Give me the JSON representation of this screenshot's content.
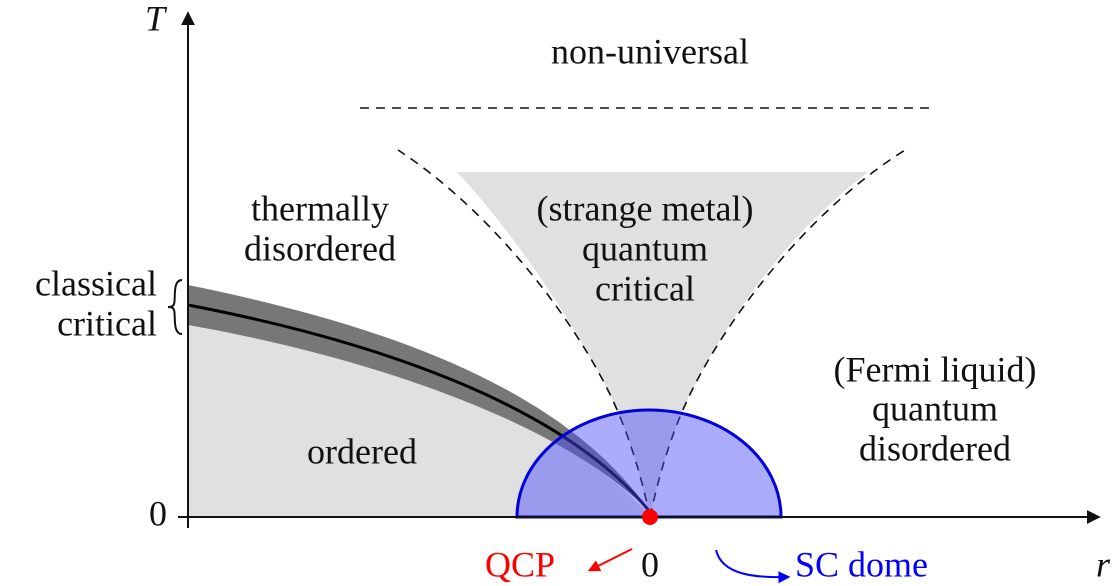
{
  "axes": {
    "y_label": "T",
    "x_label": "r",
    "y_origin": "0",
    "x_origin": "0"
  },
  "regions": [
    {
      "lines": [
        "non-universal"
      ]
    },
    {
      "lines": [
        "thermally",
        "disordered"
      ]
    },
    {
      "lines": [
        "(strange metal)",
        "quantum",
        "critical"
      ]
    },
    {
      "lines": [
        "classical",
        "critical"
      ]
    },
    {
      "lines": [
        "ordered"
      ]
    },
    {
      "lines": [
        "(Fermi liquid)",
        "quantum",
        "disordered"
      ]
    }
  ],
  "annotations": {
    "qcp": "QCP",
    "sc_dome": "SC dome"
  }
}
